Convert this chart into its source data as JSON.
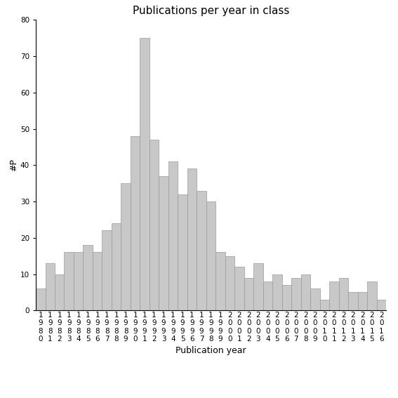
{
  "title": "Publications per year in class",
  "xlabel": "Publication year",
  "ylabel": "#P",
  "years": [
    "1980",
    "1981",
    "1982",
    "1983",
    "1984",
    "1985",
    "1986",
    "1987",
    "1988",
    "1989",
    "1990",
    "1991",
    "1992",
    "1993",
    "1994",
    "1995",
    "1996",
    "1997",
    "1998",
    "1999",
    "2000",
    "2001",
    "2002",
    "2003",
    "2004",
    "2005",
    "2006",
    "2007",
    "2008",
    "2009",
    "2010",
    "2011",
    "2012",
    "2013",
    "2014",
    "2015",
    "2016"
  ],
  "values": [
    6,
    13,
    10,
    16,
    16,
    18,
    16,
    22,
    24,
    35,
    48,
    75,
    47,
    37,
    41,
    32,
    39,
    33,
    30,
    16,
    15,
    12,
    9,
    13,
    8,
    10,
    7,
    9,
    10,
    6,
    3,
    8,
    9,
    5,
    5,
    8,
    3
  ],
  "bar_color": "#c8c8c8",
  "bar_edge_color": "#999999",
  "ylim": [
    0,
    80
  ],
  "yticks": [
    0,
    10,
    20,
    30,
    40,
    50,
    60,
    70,
    80
  ],
  "background_color": "#ffffff",
  "title_fontsize": 11,
  "label_fontsize": 9,
  "tick_fontsize": 7.5
}
